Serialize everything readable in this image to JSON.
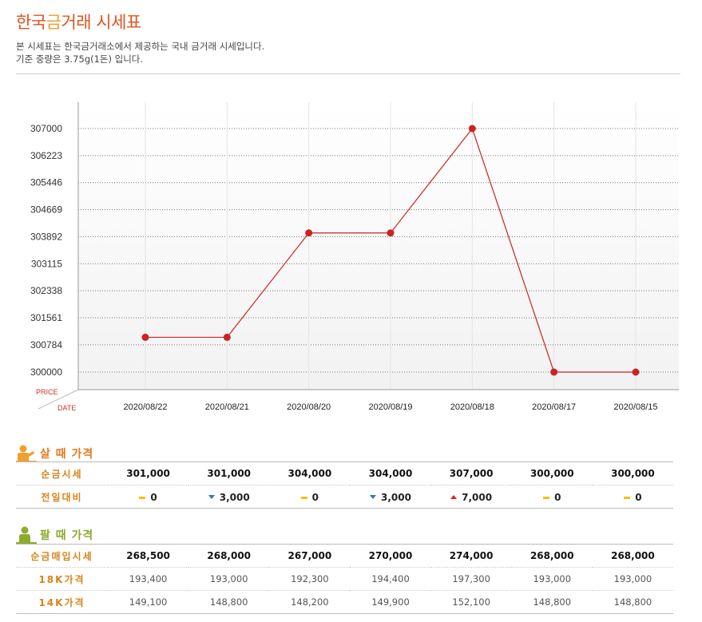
{
  "header": {
    "title_a": "한국",
    "title_b": "금",
    "title_c": "거래 시세표",
    "desc_line1": "본 시세표는 한국금거래소에서 제공하는 국내 금거래 시세입니다.",
    "desc_line2": "기준 중량은 3.75g(1돈) 입니다."
  },
  "colors": {
    "line": "#cc2222",
    "sell_accent": "#e17b1c",
    "buy_accent": "#8cab2f",
    "title": "#e0531f"
  },
  "chart_data": {
    "type": "line",
    "x_corner_label": "DATE",
    "y_corner_label": "PRICE",
    "categories": [
      "2020/08/22",
      "2020/08/21",
      "2020/08/20",
      "2020/08/19",
      "2020/08/18",
      "2020/08/17",
      "2020/08/15"
    ],
    "series": [
      {
        "values": [
          301000,
          301000,
          304000,
          304000,
          307000,
          300000,
          300000
        ]
      }
    ],
    "yticks": [
      300000,
      300784,
      301561,
      302338,
      303115,
      303892,
      304669,
      305446,
      306223,
      307000
    ],
    "ylim": [
      299950,
      307050
    ],
    "grid": true
  },
  "sell": {
    "heading": "살 때 가격",
    "icon": "person-icon",
    "rows": [
      {
        "label": "순금시세",
        "values": [
          "301,000",
          "301,000",
          "304,000",
          "304,000",
          "307,000",
          "300,000",
          "300,000"
        ]
      },
      {
        "label": "전일대비",
        "changes": [
          {
            "dir": "same",
            "value": "0"
          },
          {
            "dir": "down",
            "value": "3,000"
          },
          {
            "dir": "same",
            "value": "0"
          },
          {
            "dir": "down",
            "value": "3,000"
          },
          {
            "dir": "up",
            "value": "7,000"
          },
          {
            "dir": "same",
            "value": "0"
          },
          {
            "dir": "same",
            "value": "0"
          }
        ]
      }
    ]
  },
  "buy": {
    "heading": "팔 때 가격",
    "icon": "person-icon",
    "rows": [
      {
        "label": "순금매입시세",
        "values": [
          "268,500",
          "268,000",
          "267,000",
          "270,000",
          "274,000",
          "268,000",
          "268,000"
        ]
      },
      {
        "label": "18K가격",
        "values": [
          "193,400",
          "193,000",
          "192,300",
          "194,400",
          "197,300",
          "193,000",
          "193,000"
        ]
      },
      {
        "label": "14K가격",
        "values": [
          "149,100",
          "148,800",
          "148,200",
          "149,900",
          "152,100",
          "148,800",
          "148,800"
        ]
      }
    ]
  }
}
